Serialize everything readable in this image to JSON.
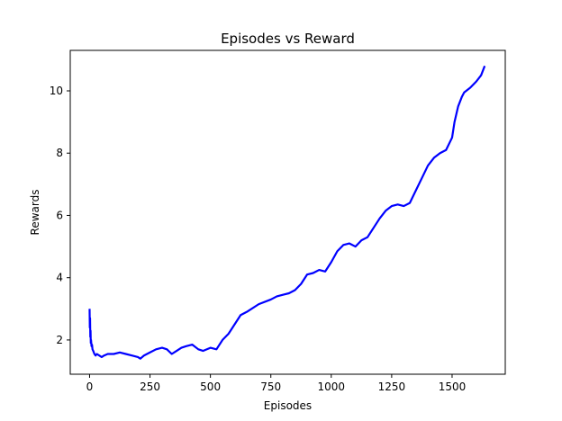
{
  "chart_data": {
    "type": "line",
    "title": "Episodes vs Reward",
    "xlabel": "Episodes",
    "ylabel": "Rewards",
    "xlim": [
      -80,
      1720
    ],
    "ylim": [
      0.9,
      11.3
    ],
    "xticks": [
      0,
      250,
      500,
      750,
      1000,
      1250,
      1500
    ],
    "yticks": [
      2,
      4,
      6,
      8,
      10
    ],
    "xtick_labels": [
      "0",
      "250",
      "500",
      "750",
      "1000",
      "1250",
      "1500"
    ],
    "ytick_labels": [
      "2",
      "4",
      "6",
      "8",
      "10"
    ],
    "grid": false,
    "legend": false,
    "series": [
      {
        "color": "#0000ff",
        "x": [
          0,
          1,
          2,
          3,
          4,
          5,
          6,
          8,
          10,
          12,
          15,
          20,
          25,
          30,
          40,
          50,
          60,
          75,
          100,
          125,
          150,
          175,
          200,
          210,
          225,
          250,
          275,
          300,
          320,
          340,
          360,
          380,
          400,
          425,
          450,
          470,
          500,
          525,
          550,
          575,
          600,
          625,
          650,
          700,
          750,
          775,
          800,
          825,
          850,
          875,
          900,
          925,
          950,
          975,
          1000,
          1025,
          1050,
          1075,
          1100,
          1125,
          1150,
          1175,
          1200,
          1225,
          1250,
          1275,
          1300,
          1325,
          1350,
          1375,
          1400,
          1425,
          1450,
          1475,
          1500,
          1510,
          1525,
          1540,
          1550,
          1575,
          1600,
          1620,
          1635
        ],
        "y": [
          3.0,
          2.4,
          2.7,
          2.1,
          2.3,
          1.9,
          2.0,
          1.8,
          1.85,
          1.7,
          1.65,
          1.55,
          1.5,
          1.55,
          1.5,
          1.45,
          1.5,
          1.55,
          1.55,
          1.6,
          1.55,
          1.5,
          1.45,
          1.4,
          1.5,
          1.6,
          1.7,
          1.75,
          1.7,
          1.55,
          1.65,
          1.75,
          1.8,
          1.85,
          1.7,
          1.65,
          1.75,
          1.7,
          2.0,
          2.2,
          2.5,
          2.8,
          2.9,
          3.15,
          3.3,
          3.4,
          3.45,
          3.5,
          3.6,
          3.8,
          4.1,
          4.15,
          4.25,
          4.2,
          4.5,
          4.85,
          5.05,
          5.1,
          5.0,
          5.2,
          5.3,
          5.6,
          5.9,
          6.15,
          6.3,
          6.35,
          6.3,
          6.4,
          6.8,
          7.2,
          7.6,
          7.85,
          8.0,
          8.1,
          8.5,
          9.0,
          9.5,
          9.8,
          9.95,
          10.1,
          10.3,
          10.5,
          10.8
        ]
      }
    ]
  }
}
